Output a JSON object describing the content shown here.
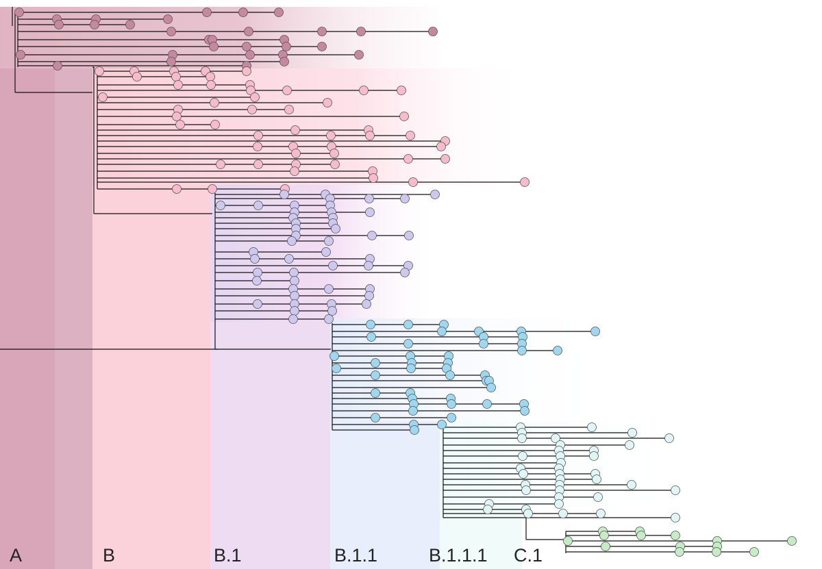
{
  "labels": {
    "a": "A",
    "b": "B",
    "b1": "B.1",
    "b11": "B.1.1",
    "b111": "B.1.1.1",
    "c1": "C.1"
  },
  "colors": {
    "A": "#c6889e",
    "B": "#f6bccb",
    "B.1": "#cdc8ee",
    "B.1.1": "#9dd8f0",
    "B.1.1.1": "#e0f6f6",
    "C.1": "#c5ecc4"
  }
}
